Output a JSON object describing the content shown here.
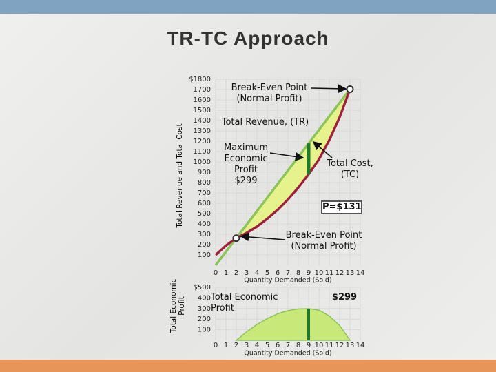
{
  "title": "TR-TC Approach",
  "chart_data": [
    {
      "type": "line",
      "ylabel": "Total Revenue and Total Cost",
      "xlabel": "Quantity Demanded (Sold)",
      "x": [
        0,
        1,
        2,
        3,
        4,
        5,
        6,
        7,
        8,
        9,
        10,
        11,
        12,
        13
      ],
      "xlim": [
        0,
        14
      ],
      "xticks": [
        0,
        1,
        2,
        3,
        4,
        5,
        6,
        7,
        8,
        9,
        10,
        11,
        12,
        13,
        14
      ],
      "ylim": [
        0,
        1800
      ],
      "yticks": [
        100,
        200,
        300,
        400,
        500,
        600,
        700,
        800,
        900,
        1000,
        1100,
        1200,
        1300,
        1400,
        1500,
        1600,
        1700,
        {
          "value": 1800,
          "label": "$1800"
        }
      ],
      "grid": true,
      "series": [
        {
          "name": "Total Revenue, (TR)",
          "color": "#8dc45a",
          "values": [
            0,
            131,
            262,
            393,
            524,
            655,
            786,
            917,
            1048,
            1179,
            1310,
            1441,
            1572,
            1703
          ]
        },
        {
          "name": "Total Cost, (TC)",
          "color": "#a0203c",
          "values": [
            100,
            190,
            262,
            313,
            374,
            450,
            536,
            637,
            752,
            880,
            1025,
            1211,
            1432,
            1703
          ]
        }
      ],
      "fill_color": "#e6f28c",
      "annotations": [
        "Break-Even Point (Normal Profit)",
        "Maximum Economic Profit $299",
        "P=$131",
        "Break-Even Point (Normal Profit)"
      ]
    },
    {
      "type": "area",
      "ylabel": "Total Economic Profit",
      "xlabel": "Quantity Demanded (Sold)",
      "x": [
        2,
        3,
        4,
        5,
        6,
        7,
        8,
        9,
        10,
        11,
        12,
        13
      ],
      "values": [
        0,
        80,
        150,
        205,
        250,
        280,
        296,
        299,
        285,
        230,
        140,
        0
      ],
      "color": "#c8e87a",
      "xlim": [
        0,
        14
      ],
      "xticks": [
        0,
        1,
        2,
        3,
        4,
        5,
        6,
        7,
        8,
        9,
        10,
        11,
        12,
        13,
        14
      ],
      "ylim": [
        0,
        500
      ],
      "yticks": [
        100,
        200,
        300,
        400,
        {
          "value": 500,
          "label": "$500"
        }
      ],
      "grid": true,
      "annotations": [
        "Total Economic Profit",
        "$299"
      ]
    }
  ]
}
